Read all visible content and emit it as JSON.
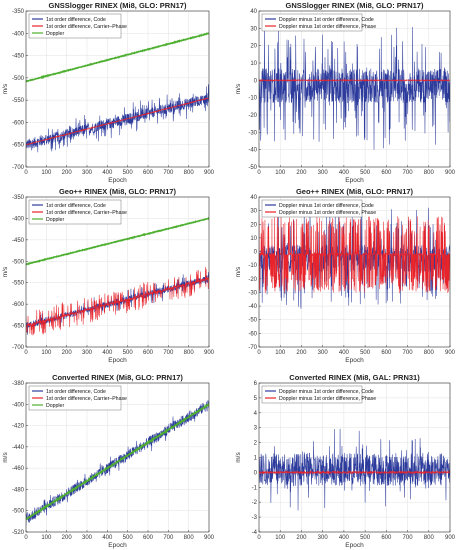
{
  "chart_data": [
    {
      "type": "line",
      "title": "GNSSlogger RINEX (Mi8, GLO: PRN17)",
      "xlabel": "Epoch",
      "ylabel": "m/s",
      "xlim": [
        0,
        900
      ],
      "ylim": [
        -700,
        -350
      ],
      "xticks": [
        0,
        100,
        200,
        300,
        400,
        500,
        600,
        700,
        800,
        900
      ],
      "yticks": [
        -700,
        -650,
        -600,
        -550,
        -500,
        -450,
        -400,
        -350
      ],
      "grid": true,
      "legend_position": "top-left",
      "series": [
        {
          "name": "1st order difference, Code",
          "color": "#2d3c9c",
          "trend": [
            [
              0,
              -650
            ],
            [
              900,
              -545
            ]
          ],
          "noise": 12,
          "spikes": 0.12,
          "spike_size": 25
        },
        {
          "name": "1st order difference, Carrier–Phase",
          "color": "#e8232a",
          "trend": [
            [
              0,
              -650
            ],
            [
              900,
              -545
            ]
          ],
          "noise": 1,
          "spikes": 0,
          "spike_size": 0
        },
        {
          "name": "Doppler",
          "color": "#4caf2f",
          "trend": [
            [
              0,
              -508
            ],
            [
              900,
              -400
            ]
          ],
          "noise": 0.6,
          "spikes": 0,
          "spike_size": 0
        }
      ]
    },
    {
      "type": "line",
      "title": "GNSSlogger RINEX (Mi8, GLO: PRN17)",
      "xlabel": "Epoch",
      "ylabel": "m/s",
      "xlim": [
        0,
        900
      ],
      "ylim": [
        -50,
        40
      ],
      "xticks": [
        0,
        100,
        200,
        300,
        400,
        500,
        600,
        700,
        800,
        900
      ],
      "yticks": [
        -50,
        -40,
        -30,
        -20,
        -10,
        0,
        10,
        20,
        30,
        40
      ],
      "grid": true,
      "legend_position": "top-right",
      "series": [
        {
          "name": "Doppler minus 1st order difference, Code",
          "color": "#2d3c9c",
          "trend": [
            [
              0,
              -3
            ],
            [
              900,
              -3
            ]
          ],
          "noise": 10,
          "spikes": 0.15,
          "spike_size": 28
        },
        {
          "name": "Doppler minus 1st order difference, Phase",
          "color": "#e8232a",
          "trend": [
            [
              0,
              0
            ],
            [
              900,
              0
            ]
          ],
          "noise": 0.3,
          "spikes": 0,
          "spike_size": 0
        }
      ]
    },
    {
      "type": "line",
      "title": "Geo++ RINEX (Mi8, GLO: PRN17)",
      "xlabel": "Epoch",
      "ylabel": "m/s",
      "xlim": [
        0,
        900
      ],
      "ylim": [
        -700,
        -350
      ],
      "xticks": [
        0,
        100,
        200,
        300,
        400,
        500,
        600,
        700,
        800,
        900
      ],
      "yticks": [
        -700,
        -650,
        -600,
        -550,
        -500,
        -450,
        -400,
        -350
      ],
      "grid": true,
      "legend_position": "top-left",
      "series": [
        {
          "name": "1st order difference, Code",
          "color": "#2d3c9c",
          "trend": [
            [
              0,
              -650
            ],
            [
              900,
              -540
            ]
          ],
          "noise": 8,
          "spikes": 0.08,
          "spike_size": 20
        },
        {
          "name": "1st order difference, Carrier–Phase",
          "color": "#e8232a",
          "trend": [
            [
              0,
              -650
            ],
            [
              900,
              -540
            ]
          ],
          "noise": 3,
          "spikes": 0.2,
          "spike_size": 30
        },
        {
          "name": "Doppler",
          "color": "#4caf2f",
          "trend": [
            [
              0,
              -507
            ],
            [
              900,
              -400
            ]
          ],
          "noise": 0.6,
          "spikes": 0,
          "spike_size": 0
        }
      ]
    },
    {
      "type": "line",
      "title": "Geo++ RINEX (Mi8, GLO: PRN17)",
      "xlabel": "Epoch",
      "ylabel": "m/s",
      "xlim": [
        0,
        900
      ],
      "ylim": [
        -70,
        40
      ],
      "xticks": [
        0,
        100,
        200,
        300,
        400,
        500,
        600,
        700,
        800,
        900
      ],
      "yticks": [
        -70,
        -60,
        -50,
        -40,
        -30,
        -20,
        -10,
        0,
        10,
        20,
        30,
        40
      ],
      "grid": true,
      "legend_position": "top-right",
      "series": [
        {
          "name": "Doppler minus 1st order difference, Code",
          "color": "#2d3c9c",
          "trend": [
            [
              0,
              -5
            ],
            [
              900,
              -5
            ]
          ],
          "noise": 10,
          "spikes": 0.15,
          "spike_size": 30
        },
        {
          "name": "Doppler minus 1st order difference, Phase",
          "color": "#e8232a",
          "trend": [
            [
              0,
              -2
            ],
            [
              900,
              -2
            ]
          ],
          "noise": 1,
          "spikes": 0.45,
          "spike_size": 28
        }
      ]
    },
    {
      "type": "line",
      "title": "Converted RINEX (Mi8, GLO: PRN17)",
      "xlabel": "Epoch",
      "ylabel": "m/s",
      "xlim": [
        0,
        900
      ],
      "ylim": [
        -520,
        -380
      ],
      "xticks": [
        0,
        100,
        200,
        300,
        400,
        500,
        600,
        700,
        800,
        900
      ],
      "yticks": [
        -520,
        -500,
        -480,
        -460,
        -440,
        -420,
        -400,
        -380
      ],
      "grid": true,
      "legend_position": "top-left",
      "series": [
        {
          "name": "1st order difference, Code",
          "color": "#2d3c9c",
          "trend": [
            [
              0,
              -508
            ],
            [
              900,
              -400
            ]
          ],
          "noise": 5,
          "spikes": 0.08,
          "spike_size": 6
        },
        {
          "name": "1st order difference, Carrier–Phase",
          "color": "#e8232a",
          "trend": [
            [
              0,
              -508
            ],
            [
              900,
              -400
            ]
          ],
          "noise": 0.4,
          "spikes": 0,
          "spike_size": 0
        },
        {
          "name": "Doppler",
          "color": "#4caf2f",
          "trend": [
            [
              0,
              -508
            ],
            [
              900,
              -400
            ]
          ],
          "noise": 0.4,
          "spikes": 0,
          "spike_size": 0
        }
      ]
    },
    {
      "type": "line",
      "title": "Converted RINEX (Mi8, GAL: PRN31)",
      "xlabel": "Epoch",
      "ylabel": "m/s",
      "xlim": [
        0,
        900
      ],
      "ylim": [
        -4,
        6
      ],
      "xticks": [
        0,
        100,
        200,
        300,
        400,
        500,
        600,
        700,
        800,
        900
      ],
      "yticks": [
        -4,
        -3,
        -2,
        -1,
        0,
        1,
        2,
        3,
        4,
        5,
        6
      ],
      "grid": true,
      "legend_position": "top-right",
      "series": [
        {
          "name": "Doppler minus 1st order difference, Code",
          "color": "#2d3c9c",
          "trend": [
            [
              0,
              0.2
            ],
            [
              900,
              0.2
            ]
          ],
          "noise": 1.1,
          "spikes": 0.08,
          "spike_size": 1.8
        },
        {
          "name": "Doppler minus 1st order difference, Phase",
          "color": "#e8232a",
          "trend": [
            [
              0,
              0
            ],
            [
              900,
              0
            ]
          ],
          "noise": 0.08,
          "spikes": 0,
          "spike_size": 0
        }
      ]
    }
  ]
}
